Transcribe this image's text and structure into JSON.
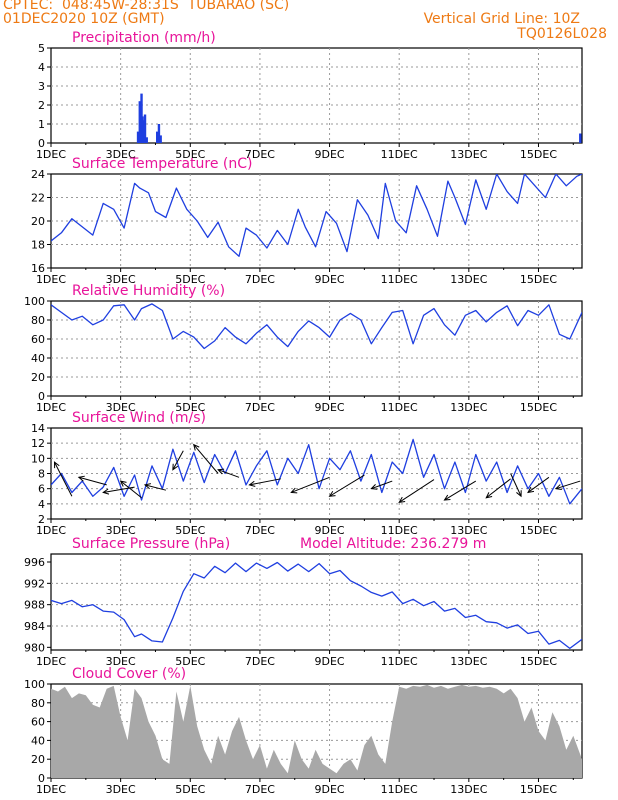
{
  "header": {
    "line1": "CPTEC:  048:45W-28:31S  TUBARAO (SC)",
    "line2": "01DEC2020 10Z (GMT)",
    "grid_note": "Vertical Grid Line: 10Z",
    "code": "TQ0126L028"
  },
  "colors": {
    "header": "#ee7a14",
    "title": "#e8149a",
    "series": "#1f3fe0",
    "cloud": "#a8a8a8",
    "grid": "#9a9a9a"
  },
  "x_axis": {
    "ticks": [
      "1DEC",
      "3DEC",
      "5DEC",
      "7DEC",
      "9DEC",
      "11DEC",
      "13DEC",
      "15DEC"
    ],
    "start_day": 1,
    "end_day": 16.25
  },
  "panels": {
    "precip": {
      "title": "Precipitation (mm/h)"
    },
    "temp": {
      "title": "Surface Temperature (nC)"
    },
    "rh": {
      "title": "Relative Humidity (%)"
    },
    "wind": {
      "title": "Surface Wind (m/s)"
    },
    "press": {
      "title": "Surface Pressure (hPa)",
      "note": "Model Altitude: 236.279 m"
    },
    "cloud": {
      "title": "Cloud Cover (%)"
    }
  },
  "chart_data": [
    {
      "type": "bar",
      "title": "Precipitation (mm/h)",
      "ylim": [
        0,
        5
      ],
      "yticks": [
        "0",
        "1",
        "2",
        "3",
        "4",
        "5"
      ],
      "x": [
        3.5,
        3.55,
        3.6,
        3.63,
        3.67,
        3.7,
        3.75,
        4.05,
        4.1,
        4.15,
        16.2
      ],
      "values": [
        0.6,
        2.2,
        2.6,
        1.4,
        1.2,
        1.5,
        0.3,
        0.6,
        1.0,
        0.4,
        0.5
      ]
    },
    {
      "type": "line",
      "title": "Surface Temperature (nC)",
      "ylim": [
        16,
        24
      ],
      "yticks": [
        "16",
        "18",
        "20",
        "22",
        "24"
      ],
      "x": [
        1,
        1.3,
        1.6,
        1.9,
        2.2,
        2.5,
        2.8,
        3.1,
        3.4,
        3.55,
        3.8,
        4.0,
        4.3,
        4.6,
        4.9,
        5.2,
        5.5,
        5.8,
        6.1,
        6.4,
        6.6,
        6.9,
        7.2,
        7.5,
        7.8,
        8.1,
        8.3,
        8.6,
        8.9,
        9.2,
        9.5,
        9.8,
        10.1,
        10.4,
        10.6,
        10.9,
        11.2,
        11.5,
        11.8,
        12.1,
        12.4,
        12.6,
        12.9,
        13.2,
        13.5,
        13.8,
        14.1,
        14.4,
        14.6,
        14.9,
        15.2,
        15.5,
        15.8,
        16.1,
        16.25
      ],
      "values": [
        18.3,
        19.0,
        20.2,
        19.5,
        18.8,
        21.5,
        21.0,
        19.4,
        23.2,
        22.8,
        22.4,
        20.8,
        20.3,
        22.8,
        21.0,
        20.0,
        18.6,
        19.9,
        17.8,
        17.0,
        19.4,
        18.8,
        17.7,
        19.2,
        18.0,
        21.0,
        19.5,
        17.8,
        20.8,
        19.8,
        17.4,
        21.8,
        20.5,
        18.5,
        23.2,
        20.0,
        19.0,
        23.0,
        21.0,
        18.7,
        23.4,
        22.0,
        19.7,
        23.5,
        21.0,
        24.0,
        22.5,
        21.5,
        24.0,
        23.0,
        22.0,
        24.0,
        23.0,
        23.8,
        24.0
      ]
    },
    {
      "type": "line",
      "title": "Relative Humidity (%)",
      "ylim": [
        0,
        100
      ],
      "yticks": [
        "0",
        "20",
        "40",
        "60",
        "80",
        "100"
      ],
      "x": [
        1,
        1.3,
        1.6,
        1.9,
        2.2,
        2.5,
        2.8,
        3.1,
        3.4,
        3.6,
        3.9,
        4.2,
        4.5,
        4.8,
        5.1,
        5.4,
        5.7,
        6.0,
        6.3,
        6.6,
        6.9,
        7.2,
        7.5,
        7.8,
        8.1,
        8.4,
        8.7,
        9.0,
        9.3,
        9.6,
        9.9,
        10.2,
        10.5,
        10.8,
        11.1,
        11.4,
        11.7,
        12.0,
        12.3,
        12.6,
        12.9,
        13.2,
        13.5,
        13.8,
        14.1,
        14.4,
        14.7,
        15.0,
        15.3,
        15.6,
        15.9,
        16.25
      ],
      "values": [
        96,
        88,
        80,
        84,
        75,
        80,
        95,
        96,
        80,
        92,
        97,
        90,
        60,
        68,
        62,
        50,
        58,
        72,
        62,
        55,
        66,
        75,
        62,
        52,
        68,
        79,
        72,
        62,
        80,
        87,
        80,
        55,
        72,
        88,
        90,
        55,
        85,
        92,
        75,
        64,
        85,
        90,
        78,
        88,
        95,
        74,
        90,
        85,
        96,
        65,
        60,
        88
      ]
    },
    {
      "type": "line",
      "title": "Surface Wind (m/s)",
      "ylim": [
        2,
        14
      ],
      "yticks": [
        "2",
        "4",
        "6",
        "8",
        "10",
        "12",
        "14"
      ],
      "x": [
        1,
        1.3,
        1.6,
        1.9,
        2.2,
        2.5,
        2.8,
        3.1,
        3.4,
        3.6,
        3.9,
        4.2,
        4.5,
        4.8,
        5.1,
        5.4,
        5.7,
        6.0,
        6.3,
        6.6,
        6.9,
        7.2,
        7.5,
        7.8,
        8.1,
        8.4,
        8.7,
        9.0,
        9.3,
        9.6,
        9.9,
        10.2,
        10.5,
        10.8,
        11.1,
        11.4,
        11.7,
        12.0,
        12.3,
        12.6,
        12.9,
        13.2,
        13.5,
        13.8,
        14.1,
        14.4,
        14.7,
        15.0,
        15.3,
        15.6,
        15.9,
        16.25
      ],
      "values": [
        6.5,
        8.0,
        5.5,
        7.0,
        5.0,
        6.2,
        8.8,
        5.0,
        7.8,
        4.5,
        9.0,
        6.0,
        11.2,
        7.0,
        10.8,
        6.8,
        10.5,
        8.0,
        11.0,
        6.5,
        9.0,
        11.0,
        6.5,
        10.0,
        8.0,
        11.8,
        6.0,
        10.0,
        8.5,
        11.0,
        7.0,
        10.5,
        5.5,
        9.5,
        8.0,
        12.5,
        7.5,
        10.5,
        6.0,
        9.5,
        5.5,
        10.5,
        7.0,
        9.5,
        5.5,
        9.0,
        6.0,
        8.0,
        5.0,
        7.5,
        4.0,
        6.0
      ],
      "vectors": [
        [
          1.1,
          9.5,
          1.6,
          5.0
        ],
        [
          1.8,
          7.5,
          2.6,
          6.5
        ],
        [
          2.5,
          5.5,
          3.4,
          6.2
        ],
        [
          3.0,
          7.0,
          3.6,
          4.8
        ],
        [
          3.7,
          6.5,
          4.3,
          5.8
        ],
        [
          4.5,
          8.5,
          4.8,
          11.0
        ],
        [
          5.1,
          11.8,
          5.8,
          8.0
        ],
        [
          5.8,
          8.5,
          6.4,
          7.5
        ],
        [
          6.7,
          6.5,
          7.6,
          7.3
        ],
        [
          7.9,
          5.5,
          9.0,
          7.5
        ],
        [
          9.0,
          5.0,
          10.0,
          7.8
        ],
        [
          10.2,
          6.0,
          10.8,
          7.0
        ],
        [
          11.0,
          4.2,
          12.0,
          7.2
        ],
        [
          12.3,
          4.5,
          13.2,
          7.0
        ],
        [
          13.5,
          4.8,
          14.2,
          7.3
        ],
        [
          14.5,
          5.0,
          14.2,
          8.0
        ],
        [
          14.7,
          5.5,
          15.3,
          7.5
        ],
        [
          15.5,
          6.0,
          16.2,
          7.0
        ]
      ]
    },
    {
      "type": "line",
      "title": "Surface Pressure (hPa)",
      "ylim": [
        979.5,
        997.5
      ],
      "yticks": [
        "980",
        "984",
        "988",
        "992",
        "996"
      ],
      "x": [
        1,
        1.3,
        1.6,
        1.9,
        2.2,
        2.5,
        2.8,
        3.1,
        3.4,
        3.6,
        3.9,
        4.2,
        4.5,
        4.8,
        5.1,
        5.4,
        5.7,
        6.0,
        6.3,
        6.6,
        6.9,
        7.2,
        7.5,
        7.8,
        8.1,
        8.4,
        8.7,
        9.0,
        9.3,
        9.6,
        9.9,
        10.2,
        10.5,
        10.8,
        11.1,
        11.4,
        11.7,
        12.0,
        12.3,
        12.6,
        12.9,
        13.2,
        13.5,
        13.8,
        14.1,
        14.4,
        14.7,
        15.0,
        15.3,
        15.6,
        15.9,
        16.25
      ],
      "values": [
        988.8,
        988.2,
        988.8,
        987.6,
        988.0,
        986.8,
        986.6,
        985.2,
        982.0,
        982.5,
        981.2,
        981.0,
        985.5,
        990.5,
        993.8,
        993.0,
        995.2,
        994.0,
        995.8,
        994.2,
        995.8,
        994.8,
        995.9,
        994.3,
        995.6,
        994.2,
        995.7,
        993.8,
        994.4,
        992.5,
        991.5,
        990.3,
        989.6,
        990.4,
        988.2,
        989.0,
        987.8,
        988.6,
        986.8,
        987.3,
        985.6,
        986.0,
        984.8,
        984.6,
        983.6,
        984.2,
        982.6,
        983.0,
        980.6,
        981.3,
        979.8,
        981.5
      ]
    },
    {
      "type": "area",
      "title": "Cloud Cover (%)",
      "ylim": [
        0,
        100
      ],
      "yticks": [
        "0",
        "20",
        "40",
        "60",
        "80",
        "100"
      ],
      "x": [
        1,
        1.2,
        1.4,
        1.6,
        1.8,
        2.0,
        2.2,
        2.4,
        2.6,
        2.8,
        3.0,
        3.2,
        3.4,
        3.6,
        3.8,
        4.0,
        4.2,
        4.4,
        4.6,
        4.8,
        5.0,
        5.2,
        5.4,
        5.6,
        5.8,
        6.0,
        6.2,
        6.4,
        6.6,
        6.8,
        7.0,
        7.2,
        7.4,
        7.6,
        7.8,
        8.0,
        8.2,
        8.4,
        8.6,
        8.8,
        9.0,
        9.2,
        9.4,
        9.6,
        9.8,
        10.0,
        10.2,
        10.4,
        10.6,
        10.8,
        11.0,
        11.2,
        11.4,
        11.6,
        11.8,
        12.0,
        12.2,
        12.4,
        12.6,
        12.8,
        13.0,
        13.2,
        13.4,
        13.6,
        13.8,
        14.0,
        14.2,
        14.4,
        14.6,
        14.8,
        15.0,
        15.2,
        15.4,
        15.6,
        15.8,
        16.0,
        16.25
      ],
      "values": [
        95,
        92,
        97,
        85,
        90,
        88,
        78,
        75,
        95,
        98,
        65,
        40,
        95,
        85,
        60,
        45,
        20,
        15,
        92,
        60,
        98,
        55,
        30,
        15,
        45,
        25,
        50,
        65,
        40,
        20,
        35,
        10,
        30,
        15,
        5,
        40,
        20,
        10,
        30,
        15,
        10,
        5,
        15,
        20,
        8,
        35,
        45,
        25,
        15,
        60,
        97,
        95,
        98,
        97,
        99,
        96,
        98,
        95,
        97,
        99,
        97,
        98,
        96,
        97,
        95,
        90,
        95,
        85,
        60,
        75,
        50,
        40,
        70,
        55,
        30,
        45,
        20
      ]
    }
  ]
}
